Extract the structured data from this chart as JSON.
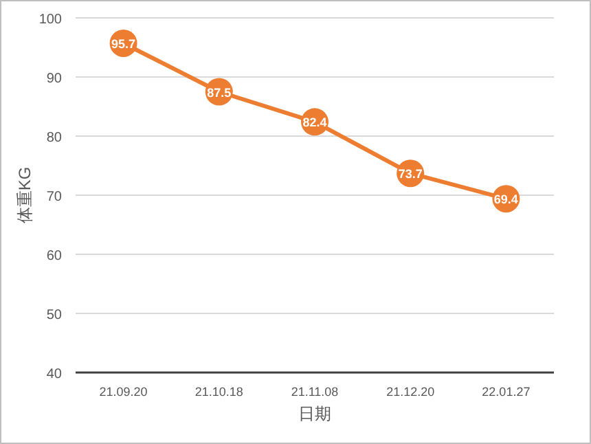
{
  "chart_data": {
    "type": "line",
    "xlabel": "日期",
    "ylabel": "体重KG",
    "categories": [
      "21.09.20",
      "21.10.18",
      "21.11.08",
      "21.12.20",
      "22.01.27"
    ],
    "series": [
      {
        "color": "#ed7d31",
        "values": [
          95.7,
          87.5,
          82.4,
          73.7,
          69.4
        ]
      }
    ],
    "ylim": [
      40,
      100
    ],
    "yticks": [
      40,
      50,
      60,
      70,
      80,
      90,
      100
    ],
    "grid": "y",
    "marker": "circle",
    "line_style": "solid",
    "data_labels": true
  }
}
